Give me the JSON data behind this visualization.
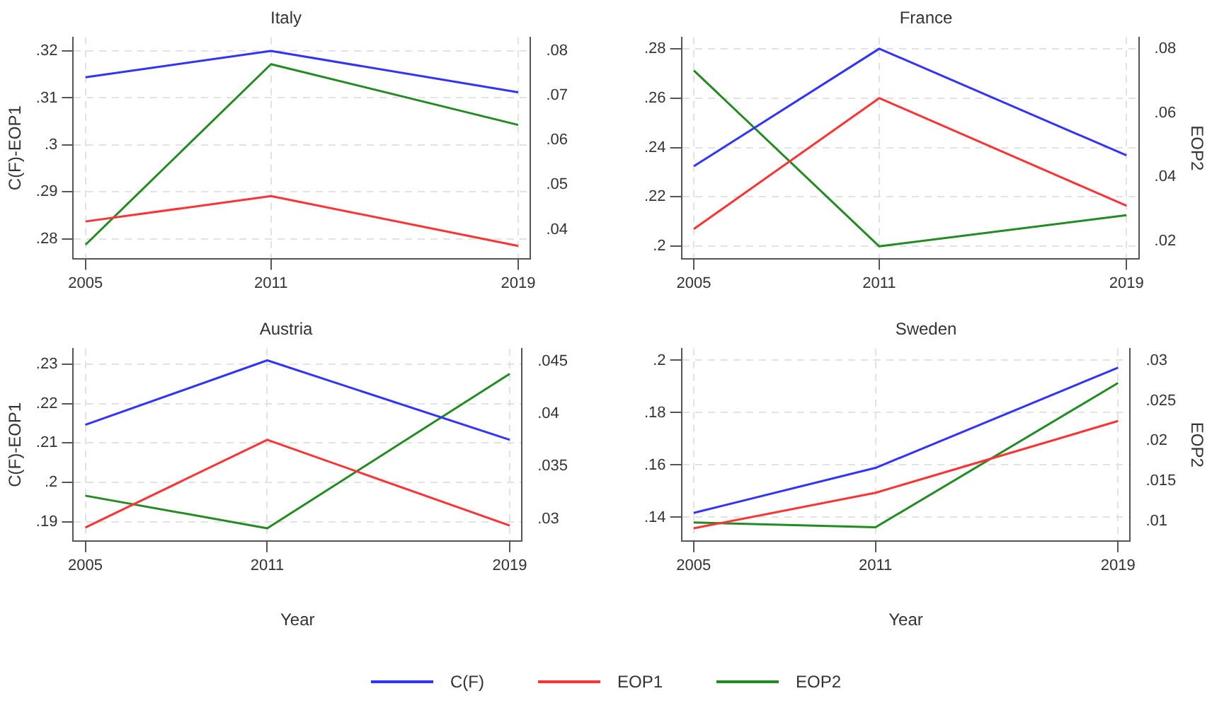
{
  "chart_data": [
    {
      "type": "line",
      "title": "Italy",
      "ylabel": "C(F)-EOP1",
      "x": [
        2005,
        2011,
        2019
      ],
      "xlim": [
        2004.6,
        2019.4
      ],
      "xticks": [
        2005,
        2011,
        2019
      ],
      "ylim": [
        0.2758,
        0.3229
      ],
      "yticks": [
        {
          "value": 0.28,
          "label": ".28"
        },
        {
          "value": 0.29,
          "label": ".29"
        },
        {
          "value": 0.3,
          "label": ".3"
        },
        {
          "value": 0.31,
          "label": ".31"
        },
        {
          "value": 0.32,
          "label": ".32"
        }
      ],
      "y2lim": [
        0.0335,
        0.083
      ],
      "y2ticks": [
        {
          "value": 0.04,
          "label": ".04"
        },
        {
          "value": 0.05,
          "label": ".05"
        },
        {
          "value": 0.06,
          "label": ".06"
        },
        {
          "value": 0.07,
          "label": ".07"
        },
        {
          "value": 0.08,
          "label": ".08"
        }
      ],
      "grid": true,
      "marker": "none",
      "series": [
        {
          "color": "#3333ff",
          "values": [
            0.3144,
            0.32,
            0.3112
          ]
        },
        {
          "color": "#ff3333",
          "values": [
            0.2837,
            0.2891,
            0.2785
          ]
        },
        {
          "color": "#228b22",
          "axis": "y2",
          "values": [
            0.0366,
            0.077,
            0.0634
          ]
        }
      ]
    },
    {
      "type": "line",
      "title": "France",
      "y2label": "EOP2",
      "x": [
        2005,
        2011,
        2019
      ],
      "xlim": [
        2004.6,
        2019.4
      ],
      "xticks": [
        2005,
        2011,
        2019
      ],
      "ylim": [
        0.195,
        0.2846
      ],
      "yticks": [
        {
          "value": 0.2,
          "label": ".2"
        },
        {
          "value": 0.22,
          "label": ".22"
        },
        {
          "value": 0.24,
          "label": ".24"
        },
        {
          "value": 0.26,
          "label": ".26"
        },
        {
          "value": 0.28,
          "label": ".28"
        }
      ],
      "y2lim": [
        0.0146,
        0.0835
      ],
      "y2ticks": [
        {
          "value": 0.02,
          "label": ".02"
        },
        {
          "value": 0.04,
          "label": ".04"
        },
        {
          "value": 0.06,
          "label": ".06"
        },
        {
          "value": 0.08,
          "label": ".08"
        }
      ],
      "grid": true,
      "marker": "none",
      "series": [
        {
          "color": "#3333ff",
          "values": [
            0.2324,
            0.28,
            0.2368
          ]
        },
        {
          "color": "#ff3333",
          "values": [
            0.207,
            0.26,
            0.2164
          ]
        },
        {
          "color": "#228b22",
          "axis": "y2",
          "values": [
            0.0732,
            0.0184,
            0.0281
          ]
        }
      ]
    },
    {
      "type": "line",
      "title": "Austria",
      "ylabel": "C(F)-EOP1",
      "xlabel": "Year",
      "x": [
        2005,
        2011,
        2019
      ],
      "xlim": [
        2004.6,
        2019.4
      ],
      "xticks": [
        2005,
        2011,
        2019
      ],
      "ylim": [
        0.1851,
        0.234
      ],
      "yticks": [
        {
          "value": 0.19,
          "label": ".19"
        },
        {
          "value": 0.2,
          "label": ".2"
        },
        {
          "value": 0.21,
          "label": ".21"
        },
        {
          "value": 0.22,
          "label": ".22"
        },
        {
          "value": 0.23,
          "label": ".23"
        }
      ],
      "y2lim": [
        0.0279,
        0.0462
      ],
      "y2ticks": [
        {
          "value": 0.03,
          "label": ".03"
        },
        {
          "value": 0.035,
          "label": ".035"
        },
        {
          "value": 0.04,
          "label": ".04"
        },
        {
          "value": 0.045,
          "label": ".045"
        }
      ],
      "grid": true,
      "marker": "none",
      "series": [
        {
          "color": "#3333ff",
          "values": [
            0.2146,
            0.231,
            0.2108
          ]
        },
        {
          "color": "#ff3333",
          "values": [
            0.1885,
            0.2108,
            0.189
          ]
        },
        {
          "color": "#228b22",
          "axis": "y2",
          "values": [
            0.0322,
            0.0291,
            0.0438
          ]
        }
      ]
    },
    {
      "type": "line",
      "title": "Sweden",
      "y2label": "EOP2",
      "xlabel": "Year",
      "x": [
        2005,
        2011,
        2019
      ],
      "xlim": [
        2004.6,
        2019.4
      ],
      "xticks": [
        2005,
        2011,
        2019
      ],
      "ylim": [
        0.131,
        0.2045
      ],
      "yticks": [
        {
          "value": 0.14,
          "label": ".14"
        },
        {
          "value": 0.16,
          "label": ".16"
        },
        {
          "value": 0.18,
          "label": ".18"
        },
        {
          "value": 0.2,
          "label": ".2"
        }
      ],
      "y2lim": [
        0.0075,
        0.0315
      ],
      "y2ticks": [
        {
          "value": 0.01,
          "label": ".01"
        },
        {
          "value": 0.015,
          "label": ".015"
        },
        {
          "value": 0.02,
          "label": ".02"
        },
        {
          "value": 0.025,
          "label": ".025"
        },
        {
          "value": 0.03,
          "label": ".03"
        }
      ],
      "grid": true,
      "marker": "none",
      "legend": "bottom",
      "series": [
        {
          "name": "C(F)",
          "color": "#3333ff",
          "values": [
            0.1417,
            0.1589,
            0.1972
          ]
        },
        {
          "name": "EOP1",
          "color": "#ff3333",
          "values": [
            0.1358,
            0.1494,
            0.1768
          ]
        },
        {
          "name": "EOP2",
          "color": "#228b22",
          "axis": "y2",
          "values": [
            0.0098,
            0.0092,
            0.0272
          ]
        }
      ]
    }
  ]
}
